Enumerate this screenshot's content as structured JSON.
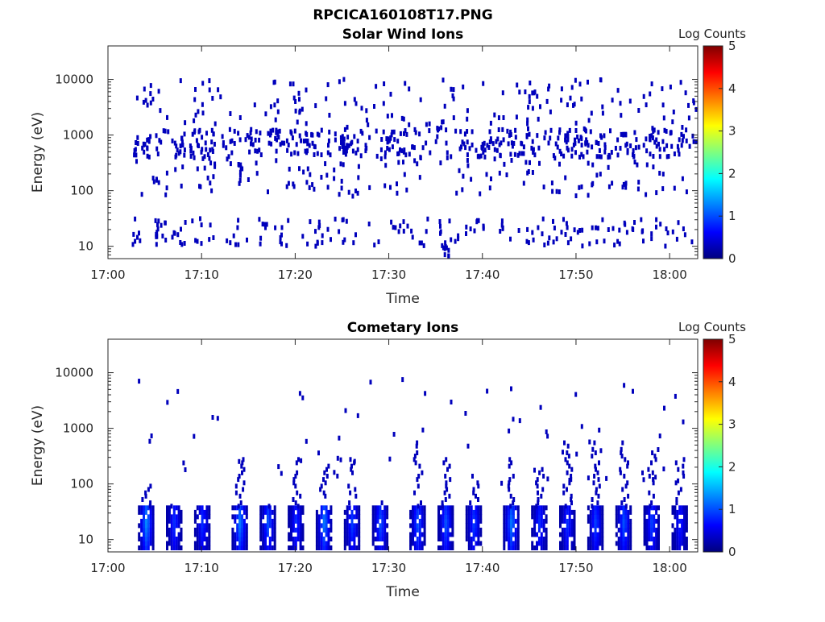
{
  "figure_title": "RPCICA160108T17.PNG",
  "colormap": [
    "#00007f",
    "#0000ff",
    "#007fff",
    "#00ffff",
    "#7fff7f",
    "#ffff00",
    "#ff7f00",
    "#ff0000",
    "#7f0000"
  ],
  "chart_data": [
    {
      "type": "heatmap",
      "title": "Solar Wind Ions",
      "xlabel": "Time",
      "ylabel": "Energy (eV)",
      "y_scale": "log",
      "xlim": [
        "17:00",
        "18:03"
      ],
      "ylim": [
        6,
        40000
      ],
      "x_ticks": [
        "17:00",
        "17:10",
        "17:20",
        "17:30",
        "17:40",
        "17:50",
        "18:00"
      ],
      "y_ticks": [
        "10",
        "100",
        "1000",
        "10000"
      ],
      "colorbar": {
        "label": "Log Counts",
        "range": [
          0,
          5
        ],
        "ticks": [
          "0",
          "1",
          "2",
          "3",
          "4",
          "5"
        ]
      },
      "pattern": "sparse single counts (log counts ~0-0.5) scattered across 10-10000 eV, denser near 20-30 eV, 500-1000 eV",
      "sample_points": [
        {
          "t": "17:04",
          "e": 600,
          "v": 0.3
        },
        {
          "t": "17:05",
          "e": 20,
          "v": 0.3
        },
        {
          "t": "17:11",
          "e": 400,
          "v": 0.3
        },
        {
          "t": "17:14",
          "e": 200,
          "v": 0.3
        },
        {
          "t": "17:18",
          "e": 900,
          "v": 0.3
        },
        {
          "t": "17:21",
          "e": 700,
          "v": 0.3
        },
        {
          "t": "17:25",
          "e": 600,
          "v": 0.3
        },
        {
          "t": "17:30",
          "e": 800,
          "v": 0.3
        },
        {
          "t": "17:36",
          "e": 10,
          "v": 0.3
        },
        {
          "t": "17:40",
          "e": 600,
          "v": 0.3
        },
        {
          "t": "17:49",
          "e": 800,
          "v": 0.3
        },
        {
          "t": "17:58",
          "e": 900,
          "v": 0.3
        }
      ]
    },
    {
      "type": "heatmap",
      "title": "Cometary Ions",
      "xlabel": "Time",
      "ylabel": "Energy (eV)",
      "y_scale": "log",
      "xlim": [
        "17:00",
        "18:03"
      ],
      "ylim": [
        6,
        40000
      ],
      "x_ticks": [
        "17:00",
        "17:10",
        "17:20",
        "17:30",
        "17:40",
        "17:50",
        "18:00"
      ],
      "y_ticks": [
        "10",
        "100",
        "1000",
        "10000"
      ],
      "colorbar": {
        "label": "Log Counts",
        "range": [
          0,
          5
        ],
        "ticks": [
          "0",
          "1",
          "2",
          "3",
          "4",
          "5"
        ]
      },
      "pattern": "periodic vertical bursts at 10-40 eV with peaks ~1-1.5 log counts, upper tails reaching 100-700 eV",
      "bursts": [
        {
          "t": "17:04",
          "peak": 1.4,
          "top_e": 100
        },
        {
          "t": "17:07",
          "peak": 0.9,
          "top_e": 40
        },
        {
          "t": "17:10",
          "peak": 0.9,
          "top_e": 40
        },
        {
          "t": "17:14",
          "peak": 1.3,
          "top_e": 300
        },
        {
          "t": "17:17",
          "peak": 1.1,
          "top_e": 60
        },
        {
          "t": "17:20",
          "peak": 0.9,
          "top_e": 300
        },
        {
          "t": "17:23",
          "peak": 1.3,
          "top_e": 300
        },
        {
          "t": "17:26",
          "peak": 1.0,
          "top_e": 300
        },
        {
          "t": "17:29",
          "peak": 1.1,
          "top_e": 60
        },
        {
          "t": "17:33",
          "peak": 1.1,
          "top_e": 600
        },
        {
          "t": "17:36",
          "peak": 1.1,
          "top_e": 300
        },
        {
          "t": "17:39",
          "peak": 1.0,
          "top_e": 150
        },
        {
          "t": "17:43",
          "peak": 1.3,
          "top_e": 300
        },
        {
          "t": "17:46",
          "peak": 0.9,
          "top_e": 200
        },
        {
          "t": "17:49",
          "peak": 0.9,
          "top_e": 600
        },
        {
          "t": "17:52",
          "peak": 1.0,
          "top_e": 600
        },
        {
          "t": "17:55",
          "peak": 1.1,
          "top_e": 600
        },
        {
          "t": "17:58",
          "peak": 1.0,
          "top_e": 400
        },
        {
          "t": "18:01",
          "peak": 0.8,
          "top_e": 300
        }
      ]
    }
  ]
}
